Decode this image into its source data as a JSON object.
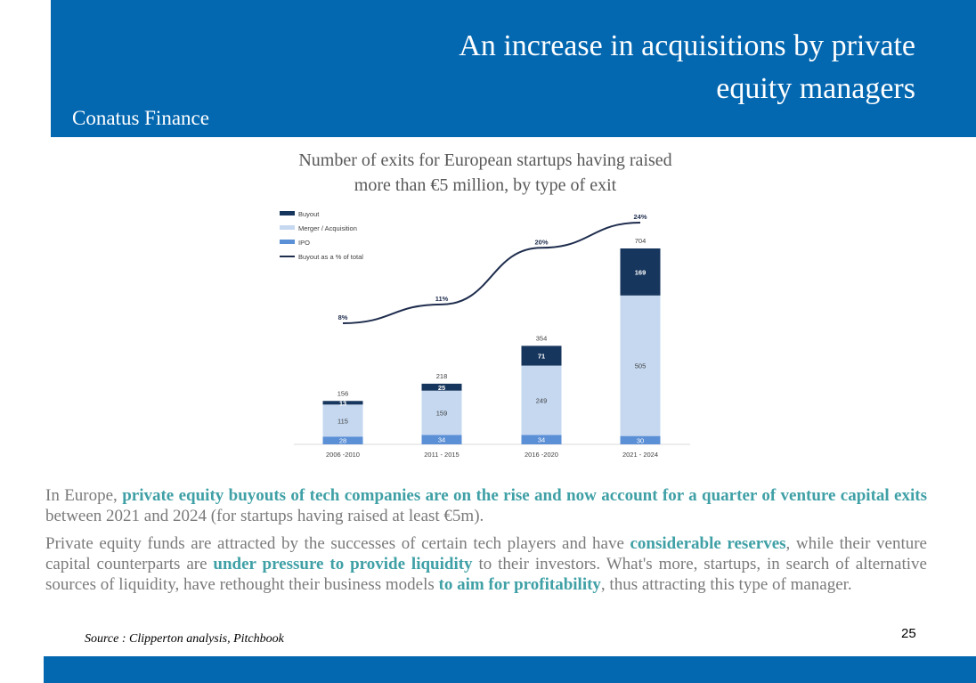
{
  "header": {
    "title_line1": "An increase in acquisitions by private",
    "title_line2": "equity managers",
    "brand": "Conatus Finance"
  },
  "chart_title_line1": "Number of exits for European startups having raised",
  "chart_title_line2": "more than €5 million, by type of exit",
  "chart_data": {
    "type": "bar",
    "stacked": true,
    "categories": [
      "2006 -2010",
      "2011 - 2015",
      "2016 -2020",
      "2021 - 2024"
    ],
    "series": [
      {
        "name": "IPO",
        "values": [
          28,
          34,
          34,
          30
        ],
        "color": "#5B8FD6"
      },
      {
        "name": "Merger / Acquisition",
        "values": [
          115,
          159,
          249,
          505
        ],
        "color": "#C5D8F0"
      },
      {
        "name": "Buyout",
        "values": [
          13,
          25,
          71,
          169
        ],
        "color": "#17365D"
      }
    ],
    "totals": [
      156,
      218,
      354,
      704
    ],
    "line_series": {
      "name": "Buyout as a % of total",
      "values": [
        8,
        11,
        20,
        24
      ],
      "labels": [
        "8%",
        "11%",
        "20%",
        "24%"
      ],
      "color": "#1F2D4E"
    },
    "legend_order": [
      "Buyout",
      "Merger / Acquisition",
      "IPO",
      "Buyout as a % of total"
    ],
    "ylim": [
      0,
      704
    ]
  },
  "body": {
    "p1_a": "In Europe, ",
    "p1_hl1": "private equity buyouts of tech companies are on the rise and now account for a quarter of venture capital exits",
    "p1_b": " between 2021 and 2024 (for startups having raised at least €5m).",
    "p2_a": "Private equity funds are attracted by the successes of certain tech players and have ",
    "p2_hl1": "considerable reserves",
    "p2_b": ", while their venture capital counterparts are ",
    "p2_hl2": "under pressure to provide liquidity",
    "p2_c": " to their investors. What's more, startups, in search of alternative sources of liquidity, have rethought their business models ",
    "p2_hl3": "to aim for profitability",
    "p2_d": ", thus attracting this type of manager."
  },
  "source": "Source : Clipperton analysis, Pitchbook",
  "page_number": "25"
}
